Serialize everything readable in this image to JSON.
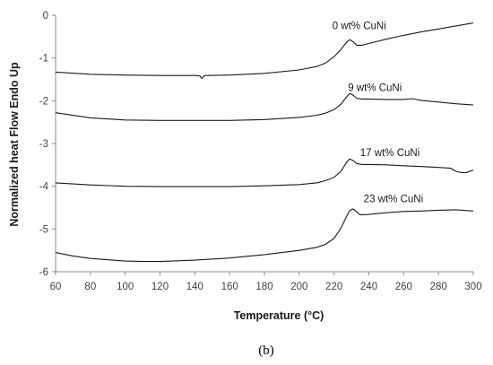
{
  "chart_data": {
    "type": "line",
    "title": "",
    "caption": "(b)",
    "xlabel": "Temperature (°C)",
    "ylabel": "Normalized heat Flow Endo Up",
    "xlim": [
      60,
      300
    ],
    "ylim": [
      -6,
      0
    ],
    "xticks": [
      60,
      80,
      100,
      120,
      140,
      160,
      180,
      200,
      220,
      240,
      260,
      280,
      300
    ],
    "yticks": [
      0,
      -1,
      -2,
      -3,
      -4,
      -5,
      -6
    ],
    "grid": false,
    "legend": "none",
    "series": [
      {
        "name": "0 wt% CuNi",
        "label_at": [
          219,
          -0.32
        ],
        "x": [
          60,
          80,
          100,
          120,
          140,
          143,
          144,
          145,
          146,
          148,
          160,
          180,
          200,
          210,
          215,
          220,
          224,
          227,
          229,
          231,
          233,
          236,
          240,
          250,
          260,
          270,
          280,
          290,
          300
        ],
        "y": [
          -1.33,
          -1.38,
          -1.4,
          -1.41,
          -1.41,
          -1.42,
          -1.48,
          -1.43,
          -1.41,
          -1.41,
          -1.4,
          -1.36,
          -1.28,
          -1.2,
          -1.12,
          -0.97,
          -0.8,
          -0.64,
          -0.57,
          -0.62,
          -0.7,
          -0.7,
          -0.66,
          -0.56,
          -0.47,
          -0.39,
          -0.32,
          -0.25,
          -0.18
        ]
      },
      {
        "name": "9 wt% CuNi",
        "label_at": [
          228,
          -1.77
        ],
        "x": [
          60,
          80,
          100,
          120,
          140,
          160,
          180,
          200,
          210,
          215,
          220,
          224,
          227,
          229,
          231,
          233,
          236,
          240,
          250,
          260,
          265,
          270,
          280,
          290,
          300
        ],
        "y": [
          -2.28,
          -2.4,
          -2.45,
          -2.46,
          -2.46,
          -2.46,
          -2.44,
          -2.39,
          -2.34,
          -2.29,
          -2.21,
          -2.08,
          -1.92,
          -1.83,
          -1.87,
          -1.94,
          -1.96,
          -1.96,
          -1.97,
          -1.97,
          -1.95,
          -1.99,
          -2.03,
          -2.07,
          -2.1
        ]
      },
      {
        "name": "17 wt% CuNi",
        "label_at": [
          235,
          -3.29
        ],
        "x": [
          60,
          80,
          100,
          120,
          140,
          160,
          180,
          200,
          210,
          215,
          220,
          224,
          227,
          229,
          231,
          233,
          236,
          240,
          250,
          260,
          270,
          280,
          287,
          290,
          293,
          296,
          300
        ],
        "y": [
          -3.92,
          -3.97,
          -4.0,
          -4.01,
          -4.01,
          -4.01,
          -3.99,
          -3.96,
          -3.92,
          -3.87,
          -3.79,
          -3.65,
          -3.45,
          -3.36,
          -3.4,
          -3.47,
          -3.49,
          -3.49,
          -3.5,
          -3.52,
          -3.54,
          -3.56,
          -3.58,
          -3.65,
          -3.68,
          -3.68,
          -3.62
        ]
      },
      {
        "name": "23 wt% CuNi",
        "label_at": [
          237,
          -4.37
        ],
        "x": [
          60,
          70,
          80,
          100,
          110,
          120,
          140,
          160,
          180,
          200,
          210,
          215,
          220,
          224,
          227,
          229,
          231,
          233,
          235,
          240,
          250,
          260,
          270,
          280,
          290,
          300
        ],
        "y": [
          -5.55,
          -5.63,
          -5.69,
          -5.75,
          -5.76,
          -5.76,
          -5.73,
          -5.68,
          -5.6,
          -5.5,
          -5.43,
          -5.36,
          -5.22,
          -4.98,
          -4.72,
          -4.57,
          -4.53,
          -4.6,
          -4.67,
          -4.66,
          -4.62,
          -4.59,
          -4.58,
          -4.56,
          -4.55,
          -4.58
        ]
      }
    ]
  }
}
